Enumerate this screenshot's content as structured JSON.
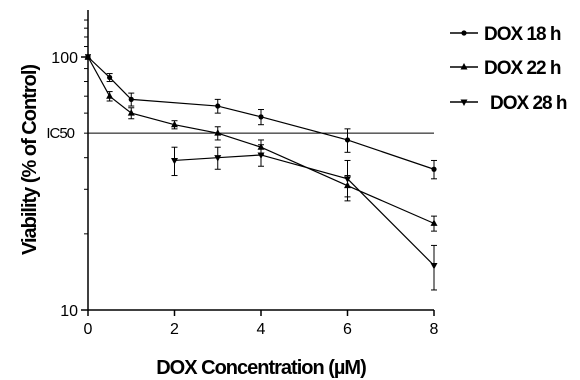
{
  "chart_data": {
    "type": "line",
    "xlabel": "DOX Concentration (µM)",
    "ylabel": "Viability (% of Control)",
    "y_scale": "log",
    "xlim": [
      0,
      8
    ],
    "ylim": [
      10,
      150
    ],
    "x_ticks": [
      "0",
      "2",
      "4",
      "6",
      "8"
    ],
    "y_ticks": [
      "100",
      "10"
    ],
    "reference_line": {
      "label": "IC50",
      "y": 50
    },
    "legend_position": "top-right",
    "series": [
      {
        "name": "DOX 18 h",
        "marker": "circle",
        "x": [
          0,
          0.5,
          1,
          3,
          4,
          6,
          8
        ],
        "y": [
          100,
          83,
          68,
          64,
          58,
          47,
          36
        ],
        "err": [
          2,
          3,
          4,
          4,
          4,
          5,
          3
        ]
      },
      {
        "name": "DOX 22 h",
        "marker": "triangle-up",
        "x": [
          0,
          0.5,
          1,
          2,
          3,
          4,
          6,
          8
        ],
        "y": [
          100,
          70,
          60,
          54,
          50,
          44,
          31,
          22
        ],
        "err": [
          2,
          3,
          3,
          2,
          3,
          3,
          3,
          1.5
        ]
      },
      {
        "name": "DOX 28 h",
        "marker": "triangle-down",
        "x": [
          2,
          3,
          4,
          6,
          8
        ],
        "y": [
          39,
          40,
          41,
          33,
          15
        ],
        "err": [
          5,
          4,
          4,
          6,
          3
        ]
      }
    ]
  }
}
